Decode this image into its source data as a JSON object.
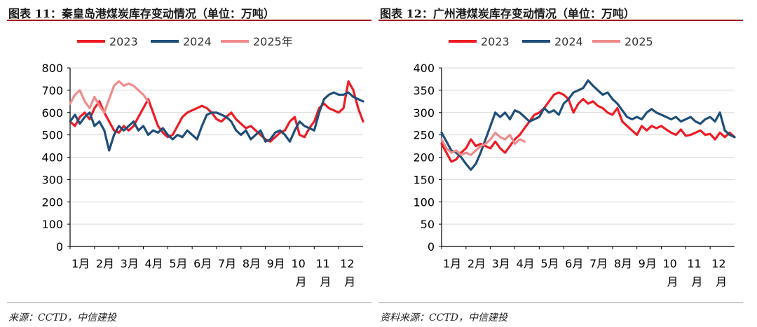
{
  "chart_data": [
    {
      "type": "line",
      "title": "图表 11：秦皇岛港煤炭库存变动情况（单位：万吨）",
      "source": "来源：CCTD，中信建投",
      "ylim": [
        0,
        800
      ],
      "yticks": [
        0,
        100,
        200,
        300,
        400,
        500,
        600,
        700,
        800
      ],
      "xlim": [
        1,
        13
      ],
      "xticks": [
        {
          "pos": 1,
          "line1": "1月",
          "line2": ""
        },
        {
          "pos": 2,
          "line1": "2月",
          "line2": ""
        },
        {
          "pos": 3,
          "line1": "3月",
          "line2": ""
        },
        {
          "pos": 4,
          "line1": "4月",
          "line2": ""
        },
        {
          "pos": 5,
          "line1": "5月",
          "line2": ""
        },
        {
          "pos": 6,
          "line1": "6月",
          "line2": ""
        },
        {
          "pos": 7,
          "line1": "7月",
          "line2": ""
        },
        {
          "pos": 8,
          "line1": "8月",
          "line2": ""
        },
        {
          "pos": 9,
          "line1": "9月",
          "line2": ""
        },
        {
          "pos": 10,
          "line1": "10",
          "line2": "月"
        },
        {
          "pos": 11,
          "line1": "11",
          "line2": "月"
        },
        {
          "pos": 12,
          "line1": "12",
          "line2": "月"
        }
      ],
      "series": [
        {
          "name": "2023",
          "color": "#ee1c25",
          "x": [
            1,
            1.2,
            1.4,
            1.6,
            1.8,
            2,
            2.2,
            2.4,
            2.6,
            2.8,
            3,
            3.2,
            3.4,
            3.6,
            3.8,
            4,
            4.2,
            4.4,
            4.6,
            4.8,
            5,
            5.2,
            5.4,
            5.6,
            5.8,
            6,
            6.2,
            6.4,
            6.6,
            6.8,
            7,
            7.2,
            7.4,
            7.6,
            7.8,
            8,
            8.2,
            8.4,
            8.6,
            8.8,
            9,
            9.2,
            9.4,
            9.6,
            9.8,
            10,
            10.2,
            10.4,
            10.6,
            10.8,
            11,
            11.2,
            11.4,
            11.6,
            11.8,
            12,
            12.2,
            12.4,
            12.6,
            12.8,
            13
          ],
          "y": [
            560,
            540,
            580,
            600,
            570,
            620,
            650,
            600,
            560,
            520,
            510,
            540,
            520,
            540,
            580,
            620,
            660,
            600,
            540,
            510,
            490,
            500,
            540,
            580,
            600,
            610,
            620,
            630,
            620,
            600,
            570,
            560,
            580,
            600,
            570,
            550,
            530,
            540,
            520,
            500,
            480,
            470,
            490,
            510,
            520,
            560,
            580,
            500,
            490,
            530,
            560,
            620,
            640,
            620,
            610,
            600,
            620,
            740,
            700,
            620,
            560
          ]
        },
        {
          "name": "2024",
          "color": "#1f4e79",
          "x": [
            1,
            1.2,
            1.4,
            1.6,
            1.8,
            2,
            2.2,
            2.4,
            2.6,
            2.8,
            3,
            3.2,
            3.4,
            3.6,
            3.8,
            4,
            4.2,
            4.4,
            4.6,
            4.8,
            5,
            5.2,
            5.4,
            5.6,
            5.8,
            6,
            6.2,
            6.4,
            6.6,
            6.8,
            7,
            7.2,
            7.4,
            7.6,
            7.8,
            8,
            8.2,
            8.4,
            8.6,
            8.8,
            9,
            9.2,
            9.4,
            9.6,
            9.8,
            10,
            10.2,
            10.4,
            10.6,
            10.8,
            11,
            11.2,
            11.4,
            11.6,
            11.8,
            12,
            12.2,
            12.4,
            12.6,
            12.8,
            13
          ],
          "y": [
            560,
            590,
            550,
            580,
            600,
            540,
            560,
            520,
            430,
            500,
            540,
            520,
            540,
            560,
            520,
            540,
            500,
            520,
            510,
            530,
            500,
            480,
            500,
            490,
            520,
            500,
            480,
            540,
            590,
            600,
            600,
            590,
            580,
            560,
            520,
            500,
            520,
            480,
            500,
            520,
            470,
            480,
            510,
            520,
            500,
            470,
            520,
            560,
            540,
            530,
            520,
            600,
            660,
            680,
            690,
            680,
            680,
            690,
            670,
            660,
            650
          ]
        },
        {
          "name": "2025年",
          "color": "#f08c8c",
          "x": [
            1,
            1.2,
            1.4,
            1.6,
            1.8,
            2,
            2.2,
            2.4,
            2.6,
            2.8,
            3,
            3.2,
            3.4,
            3.6,
            3.8,
            4,
            4.2
          ],
          "y": [
            640,
            680,
            700,
            650,
            620,
            670,
            630,
            600,
            660,
            720,
            740,
            720,
            730,
            720,
            700,
            680,
            650
          ]
        }
      ]
    },
    {
      "type": "line",
      "title": "图表 12：广州港煤炭库存变动情况（单位：万吨）",
      "source": "资料来源：CCTD，中信建投",
      "ylim": [
        0,
        400
      ],
      "yticks": [
        0,
        50,
        100,
        150,
        200,
        250,
        300,
        350,
        400
      ],
      "xlim": [
        1,
        13
      ],
      "xticks": [
        {
          "pos": 1,
          "line1": "1月",
          "line2": ""
        },
        {
          "pos": 2,
          "line1": "2月",
          "line2": ""
        },
        {
          "pos": 3,
          "line1": "3月",
          "line2": ""
        },
        {
          "pos": 4,
          "line1": "4月",
          "line2": ""
        },
        {
          "pos": 5,
          "line1": "5月",
          "line2": ""
        },
        {
          "pos": 6,
          "line1": "6月",
          "line2": ""
        },
        {
          "pos": 7,
          "line1": "7月",
          "line2": ""
        },
        {
          "pos": 8,
          "line1": "8月",
          "line2": ""
        },
        {
          "pos": 9,
          "line1": "9月",
          "line2": ""
        },
        {
          "pos": 10,
          "line1": "10",
          "line2": "月"
        },
        {
          "pos": 11,
          "line1": "11",
          "line2": "月"
        },
        {
          "pos": 12,
          "line1": "12",
          "line2": "月"
        }
      ],
      "series": [
        {
          "name": "2023",
          "color": "#ee1c25",
          "x": [
            1,
            1.2,
            1.4,
            1.6,
            1.8,
            2,
            2.2,
            2.4,
            2.6,
            2.8,
            3,
            3.2,
            3.4,
            3.6,
            3.8,
            4,
            4.2,
            4.4,
            4.6,
            4.8,
            5,
            5.2,
            5.4,
            5.6,
            5.8,
            6,
            6.2,
            6.4,
            6.6,
            6.8,
            7,
            7.2,
            7.4,
            7.6,
            7.8,
            8,
            8.2,
            8.4,
            8.6,
            8.8,
            9,
            9.2,
            9.4,
            9.6,
            9.8,
            10,
            10.2,
            10.4,
            10.6,
            10.8,
            11,
            11.2,
            11.4,
            11.6,
            11.8,
            12,
            12.2,
            12.4,
            12.6,
            12.8,
            13
          ],
          "y": [
            230,
            210,
            190,
            195,
            210,
            220,
            240,
            225,
            230,
            225,
            220,
            235,
            220,
            210,
            225,
            240,
            250,
            265,
            280,
            295,
            300,
            310,
            325,
            340,
            345,
            340,
            330,
            300,
            320,
            330,
            320,
            325,
            315,
            310,
            300,
            295,
            310,
            280,
            270,
            260,
            250,
            270,
            260,
            270,
            265,
            270,
            262,
            255,
            250,
            262,
            248,
            250,
            255,
            260,
            250,
            252,
            240,
            255,
            245,
            255,
            245
          ]
        },
        {
          "name": "2024",
          "color": "#1f4e79",
          "x": [
            1,
            1.2,
            1.4,
            1.6,
            1.8,
            2,
            2.2,
            2.4,
            2.6,
            2.8,
            3,
            3.2,
            3.4,
            3.6,
            3.8,
            4,
            4.2,
            4.4,
            4.6,
            4.8,
            5,
            5.2,
            5.4,
            5.6,
            5.8,
            6,
            6.2,
            6.4,
            6.6,
            6.8,
            7,
            7.2,
            7.4,
            7.6,
            7.8,
            8,
            8.2,
            8.4,
            8.6,
            8.8,
            9,
            9.2,
            9.4,
            9.6,
            9.8,
            10,
            10.2,
            10.4,
            10.6,
            10.8,
            11,
            11.2,
            11.4,
            11.6,
            11.8,
            12,
            12.2,
            12.4,
            12.6,
            12.8,
            13
          ],
          "y": [
            255,
            235,
            215,
            210,
            200,
            185,
            172,
            185,
            210,
            240,
            270,
            300,
            290,
            300,
            285,
            305,
            300,
            290,
            280,
            285,
            290,
            310,
            300,
            305,
            295,
            320,
            330,
            345,
            350,
            355,
            372,
            360,
            350,
            340,
            345,
            330,
            320,
            305,
            290,
            285,
            290,
            285,
            300,
            308,
            300,
            295,
            290,
            285,
            290,
            280,
            285,
            290,
            280,
            275,
            285,
            290,
            280,
            300,
            260,
            250,
            245
          ]
        },
        {
          "name": "2025",
          "color": "#f08c8c",
          "x": [
            1,
            1.2,
            1.4,
            1.6,
            1.8,
            2,
            2.2,
            2.4,
            2.6,
            2.8,
            3,
            3.2,
            3.4,
            3.6,
            3.8,
            4,
            4.2,
            4.4
          ],
          "y": [
            240,
            220,
            210,
            215,
            205,
            210,
            205,
            215,
            225,
            230,
            240,
            255,
            245,
            240,
            250,
            230,
            240,
            235
          ]
        }
      ]
    }
  ]
}
